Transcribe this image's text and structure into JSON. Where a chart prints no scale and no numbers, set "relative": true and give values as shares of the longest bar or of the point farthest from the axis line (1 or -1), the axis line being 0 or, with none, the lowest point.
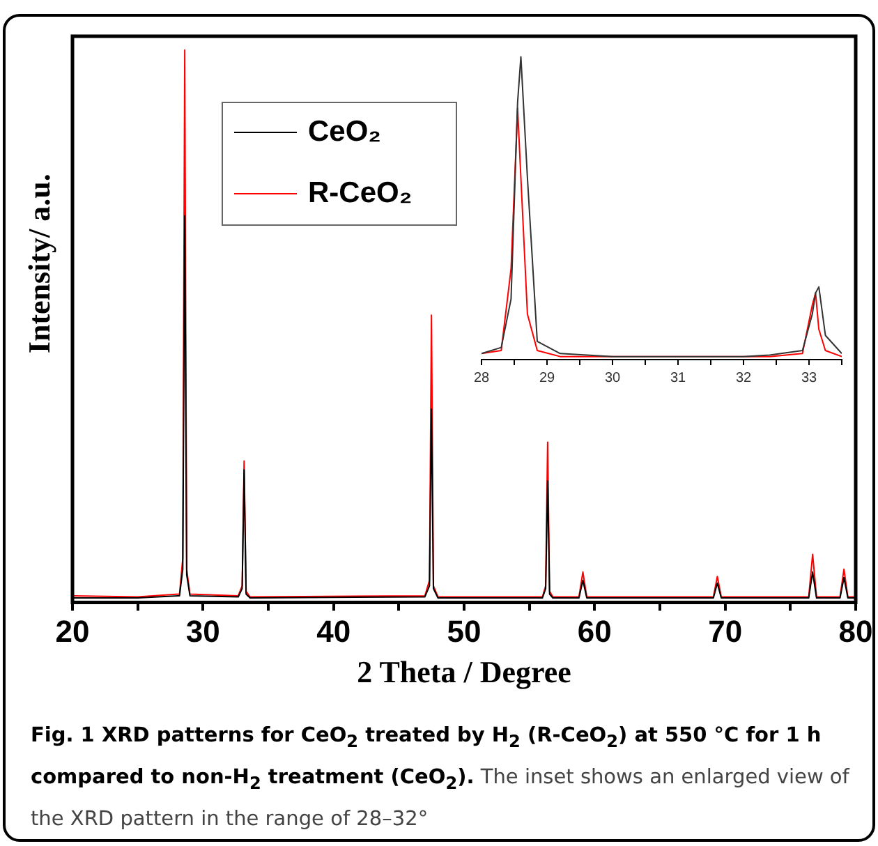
{
  "chart_data": [
    {
      "type": "line",
      "relative": true,
      "xlabel": "2 Theta / Degree",
      "ylabel": "Intensity/ a.u.",
      "xlim": [
        20,
        80
      ],
      "xticks": [
        20,
        {
          "value": 25,
          "label": null
        },
        30,
        {
          "value": 35,
          "label": null
        },
        40,
        {
          "value": 45,
          "label": null
        },
        50,
        {
          "value": 55,
          "label": null
        },
        60,
        {
          "value": 65,
          "label": null
        },
        70,
        {
          "value": 75,
          "label": null
        },
        80
      ],
      "tick_labels": "x",
      "grid": false,
      "legend": "top left",
      "marker": "none",
      "line_style": "solid",
      "x": [
        20,
        25,
        28.2,
        28.45,
        28.6,
        28.75,
        29.0,
        32.7,
        33.0,
        33.15,
        33.3,
        33.6,
        47.0,
        47.35,
        47.5,
        47.65,
        48.0,
        56.0,
        56.25,
        56.4,
        56.55,
        56.8,
        58.8,
        59.1,
        59.4,
        69.1,
        69.4,
        69.7,
        76.4,
        76.7,
        77.0,
        78.8,
        79.1,
        79.4,
        80
      ],
      "series": [
        {
          "name": "CeO₂",
          "color": "#000000",
          "values": [
            0.008,
            0.008,
            0.012,
            0.06,
            0.7,
            0.05,
            0.012,
            0.01,
            0.025,
            0.24,
            0.015,
            0.008,
            0.01,
            0.03,
            0.35,
            0.025,
            0.008,
            0.008,
            0.025,
            0.22,
            0.015,
            0.008,
            0.008,
            0.04,
            0.008,
            0.008,
            0.035,
            0.008,
            0.008,
            0.055,
            0.008,
            0.008,
            0.045,
            0.008,
            0.008
          ]
        },
        {
          "name": "R-CeO₂",
          "color": "#ff0000",
          "values": [
            0.012,
            0.01,
            0.015,
            0.08,
            1,
            0.06,
            0.015,
            0.012,
            0.03,
            0.256,
            0.02,
            0.01,
            0.012,
            0.04,
            0.52,
            0.03,
            0.01,
            0.01,
            0.03,
            0.29,
            0.02,
            0.01,
            0.01,
            0.055,
            0.01,
            0.01,
            0.047,
            0.01,
            0.01,
            0.087,
            0.01,
            0.01,
            0.06,
            0.01,
            0.01
          ]
        }
      ],
      "annotations": [
        "Fig. 1 XRD patterns for CeO$_{2}$ treated by H$_{2}$ (R-CeO$_{2}$) at 550 °C for 1 h compared to non-H$_{2}$ treatment (CeO$_{2}$).",
        "The inset shows an enlarged view of the XRD pattern in the range of 28–32°"
      ]
    },
    {
      "type": "line",
      "relative": true,
      "xlim": [
        28,
        33.5
      ],
      "xticks": [
        28,
        {
          "value": 28.5,
          "label": null
        },
        29,
        {
          "value": 29.5,
          "label": null
        },
        30,
        {
          "value": 30.5,
          "label": null
        },
        31,
        {
          "value": 31.5,
          "label": null
        },
        32,
        {
          "value": 32.5,
          "label": null
        },
        33,
        {
          "value": 33.5,
          "label": null
        }
      ],
      "tick_labels": "x",
      "grid": false,
      "marker": "none",
      "line_style": "solid",
      "x": [
        28,
        28.3,
        28.45,
        28.55,
        28.6,
        28.7,
        28.85,
        29.2,
        30,
        31,
        32,
        32.4,
        32.9,
        33.05,
        33.1,
        33.15,
        33.25,
        33.5
      ],
      "series": [
        {
          "color": "#333333",
          "values": [
            0.02,
            0.04,
            0.2,
            0.85,
            1,
            0.6,
            0.06,
            0.02,
            0.01,
            0.01,
            0.01,
            0.015,
            0.03,
            0.15,
            0.22,
            0.24,
            0.08,
            0.02
          ]
        },
        {
          "color": "#ff0000",
          "values": [
            0.02,
            0.03,
            0.3,
            0.83,
            0.6,
            0.15,
            0.03,
            0.01,
            0.01,
            0.01,
            0.01,
            0.01,
            0.02,
            0.18,
            0.22,
            0.1,
            0.03,
            0.01
          ]
        }
      ]
    }
  ]
}
